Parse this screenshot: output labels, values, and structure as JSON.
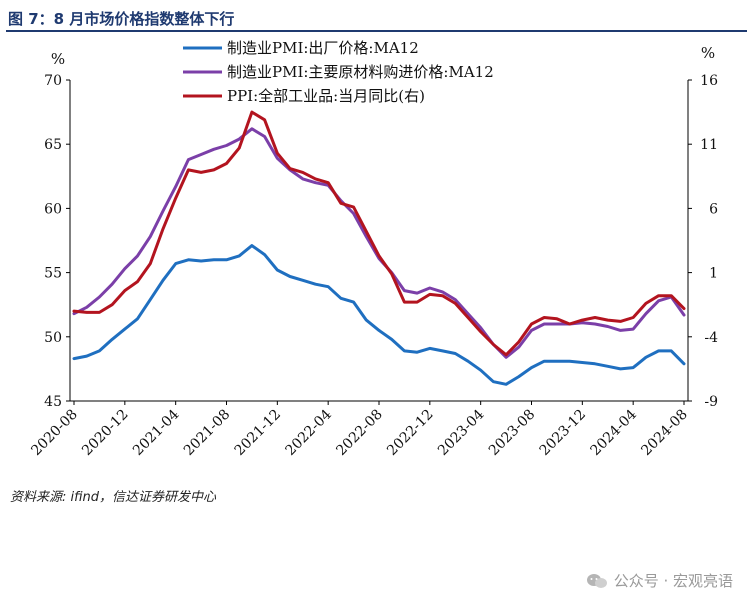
{
  "title": "图 7：8 月市场价格指数整体下行",
  "source": "资料来源: ifind，信达证券研发中心",
  "watermark": {
    "icon": "wechat-icon",
    "text": "公众号 · 宏观亮语"
  },
  "chart_data": {
    "type": "line",
    "y_left": {
      "unit": "%",
      "ylim": [
        45,
        70
      ],
      "ticks": [
        "45",
        "50",
        "55",
        "60",
        "65",
        "70"
      ]
    },
    "y_right": {
      "unit": "%",
      "ylim": [
        -9,
        16
      ],
      "ticks": [
        "-9",
        "-4",
        "1",
        "6",
        "11",
        "16"
      ]
    },
    "x_ticks": [
      "2020-08",
      "2020-12",
      "2021-04",
      "2021-08",
      "2021-12",
      "2022-04",
      "2022-08",
      "2022-12",
      "2023-04",
      "2023-08",
      "2023-12",
      "2024-04",
      "2024-08"
    ],
    "x": [
      "2020-08",
      "2020-09",
      "2020-10",
      "2020-11",
      "2020-12",
      "2021-01",
      "2021-02",
      "2021-03",
      "2021-04",
      "2021-05",
      "2021-06",
      "2021-07",
      "2021-08",
      "2021-09",
      "2021-10",
      "2021-11",
      "2021-12",
      "2022-01",
      "2022-02",
      "2022-03",
      "2022-04",
      "2022-05",
      "2022-06",
      "2022-07",
      "2022-08",
      "2022-09",
      "2022-10",
      "2022-11",
      "2022-12",
      "2023-01",
      "2023-02",
      "2023-03",
      "2023-04",
      "2023-05",
      "2023-06",
      "2023-07",
      "2023-08",
      "2023-09",
      "2023-10",
      "2023-11",
      "2023-12",
      "2024-01",
      "2024-02",
      "2024-03",
      "2024-04",
      "2024-05",
      "2024-06",
      "2024-07",
      "2024-08"
    ],
    "series": [
      {
        "name": "制造业PMI:出厂价格:MA12",
        "axis": "left",
        "color": "#1f6fc0",
        "values": [
          48.3,
          48.5,
          48.9,
          49.8,
          50.6,
          51.4,
          52.9,
          54.4,
          55.7,
          56.0,
          55.9,
          56.0,
          56.0,
          56.3,
          57.1,
          56.4,
          55.2,
          54.7,
          54.4,
          54.1,
          53.9,
          53.0,
          52.7,
          51.3,
          50.5,
          49.8,
          48.9,
          48.8,
          49.1,
          48.9,
          48.7,
          48.1,
          47.4,
          46.5,
          46.3,
          46.9,
          47.6,
          48.1,
          48.1,
          48.1,
          48.0,
          47.9,
          47.7,
          47.5,
          47.6,
          48.4,
          48.9,
          48.9,
          47.9
        ]
      },
      {
        "name": "制造业PMI:主要原材料购进价格:MA12",
        "axis": "left",
        "color": "#7b3fa8",
        "values": [
          51.8,
          52.3,
          53.1,
          54.1,
          55.3,
          56.3,
          57.8,
          59.8,
          61.7,
          63.8,
          64.2,
          64.6,
          64.9,
          65.4,
          66.2,
          65.6,
          63.9,
          63.0,
          62.3,
          62.0,
          61.8,
          60.6,
          59.6,
          57.8,
          56.1,
          55.0,
          53.6,
          53.4,
          53.8,
          53.5,
          52.9,
          51.8,
          50.7,
          49.4,
          48.4,
          49.2,
          50.5,
          51.0,
          51.0,
          51.0,
          51.1,
          51.0,
          50.8,
          50.5,
          50.6,
          51.8,
          52.8,
          53.1,
          51.7
        ]
      },
      {
        "name": "PPI:全部工业品:当月同比(右)",
        "axis": "right",
        "color": "#b3141f",
        "values": [
          -2.0,
          -2.1,
          -2.1,
          -1.5,
          -0.4,
          0.3,
          1.7,
          4.4,
          6.8,
          9.0,
          8.8,
          9.0,
          9.5,
          10.7,
          13.5,
          12.9,
          10.3,
          9.1,
          8.8,
          8.3,
          8.0,
          6.4,
          6.1,
          4.2,
          2.3,
          0.9,
          -1.3,
          -1.3,
          -0.7,
          -0.8,
          -1.4,
          -2.5,
          -3.6,
          -4.6,
          -5.4,
          -4.4,
          -3.0,
          -2.5,
          -2.6,
          -3.0,
          -2.7,
          -2.5,
          -2.7,
          -2.8,
          -2.5,
          -1.4,
          -0.8,
          -0.8,
          -1.8
        ]
      }
    ]
  }
}
